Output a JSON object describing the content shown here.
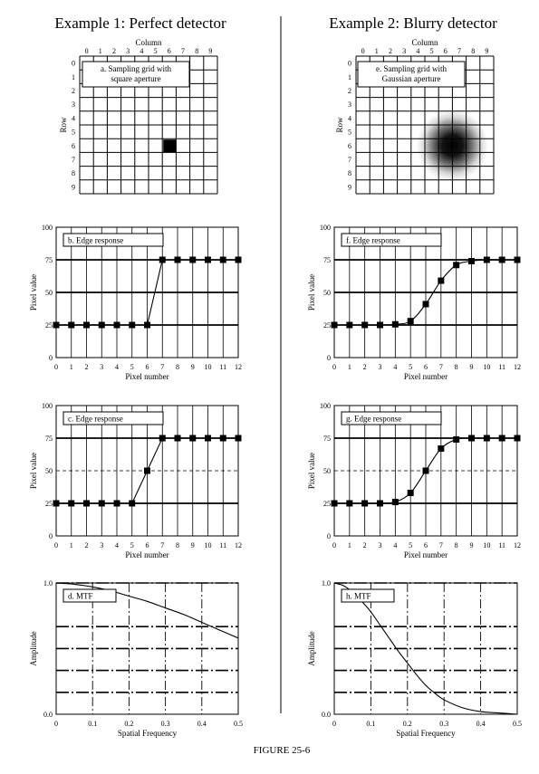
{
  "figure_caption": "FIGURE 25-6",
  "columns": [
    {
      "title": "Example 1: Perfect detector"
    },
    {
      "title": "Example 2: Blurry detector"
    }
  ],
  "grid_axes": {
    "col_label": "Column",
    "row_label": "Row",
    "indices": [
      "0",
      "1",
      "2",
      "3",
      "4",
      "5",
      "6",
      "7",
      "8",
      "9"
    ]
  },
  "grids": [
    {
      "label_line1": "a.  Sampling grid with",
      "label_line2": "square aperture",
      "aperture": "square",
      "aperture_col": 6,
      "aperture_row": 6
    },
    {
      "label_line1": "e.  Sampling grid with",
      "label_line2": "Gaussian aperture",
      "aperture": "gaussian",
      "aperture_col": 6.5,
      "aperture_row": 6
    }
  ],
  "chart_data": [
    {
      "id": "b",
      "type": "line",
      "label": "b.  Edge response",
      "xlabel": "Pixel number",
      "ylabel": "Pixel value",
      "xlim": [
        0,
        12
      ],
      "ylim": [
        0,
        100
      ],
      "xticks": [
        "0",
        "1",
        "2",
        "3",
        "4",
        "5",
        "6",
        "7",
        "8",
        "9",
        "10",
        "11",
        "12"
      ],
      "yticks": [
        "0",
        "25",
        "50",
        "75",
        "100"
      ],
      "bold_y": [
        25,
        50,
        75
      ],
      "x": [
        0,
        1,
        2,
        3,
        4,
        5,
        6,
        7,
        8,
        9,
        10,
        11,
        12
      ],
      "y": [
        25,
        25,
        25,
        25,
        25,
        25,
        25,
        75,
        75,
        75,
        75,
        75,
        75
      ]
    },
    {
      "id": "f",
      "type": "line",
      "label": "f.  Edge response",
      "xlabel": "Pixel number",
      "ylabel": "Pixel value",
      "xlim": [
        0,
        12
      ],
      "ylim": [
        0,
        100
      ],
      "xticks": [
        "0",
        "1",
        "2",
        "3",
        "4",
        "5",
        "6",
        "7",
        "8",
        "9",
        "10",
        "11",
        "12"
      ],
      "yticks": [
        "0",
        "25",
        "50",
        "75",
        "100"
      ],
      "bold_y": [
        25,
        50,
        75
      ],
      "x": [
        0,
        1,
        2,
        3,
        4,
        5,
        6,
        7,
        8,
        9,
        10,
        11,
        12
      ],
      "y": [
        25,
        25,
        25,
        25,
        25.5,
        28,
        41,
        59,
        71,
        74,
        75,
        75,
        75
      ]
    },
    {
      "id": "c",
      "type": "line",
      "label": "c.  Edge response",
      "xlabel": "Pixel number",
      "ylabel": "Pixel value",
      "xlim": [
        0,
        12
      ],
      "ylim": [
        0,
        100
      ],
      "xticks": [
        "0",
        "1",
        "2",
        "3",
        "4",
        "5",
        "6",
        "7",
        "8",
        "9",
        "10",
        "11",
        "12"
      ],
      "yticks": [
        "0",
        "25",
        "50",
        "75",
        "100"
      ],
      "bold_y": [
        25,
        75
      ],
      "x": [
        0,
        1,
        2,
        3,
        4,
        5,
        6,
        7,
        8,
        9,
        10,
        11,
        12
      ],
      "y": [
        25,
        25,
        25,
        25,
        25,
        25,
        50,
        75,
        75,
        75,
        75,
        75,
        75
      ]
    },
    {
      "id": "g",
      "type": "line",
      "label": "g.  Edge response",
      "xlabel": "Pixel number",
      "ylabel": "Pixel value",
      "xlim": [
        0,
        12
      ],
      "ylim": [
        0,
        100
      ],
      "xticks": [
        "0",
        "1",
        "2",
        "3",
        "4",
        "5",
        "6",
        "7",
        "8",
        "9",
        "10",
        "11",
        "12"
      ],
      "yticks": [
        "0",
        "25",
        "50",
        "75",
        "100"
      ],
      "bold_y": [
        25,
        75
      ],
      "x": [
        0,
        1,
        2,
        3,
        4,
        5,
        6,
        7,
        8,
        9,
        10,
        11,
        12
      ],
      "y": [
        25,
        25,
        25,
        25,
        26,
        33,
        50,
        67,
        74,
        75,
        75,
        75,
        75
      ]
    },
    {
      "id": "d",
      "type": "line",
      "label": "d.  MTF",
      "xlabel": "Spatial Frequency",
      "ylabel": "Amplitude",
      "xlim": [
        0,
        0.5
      ],
      "ylim": [
        0,
        1.0
      ],
      "xticks": [
        "0",
        "0.1",
        "0.2",
        "0.3",
        "0.4",
        "0.5"
      ],
      "yticks": [
        "0.0",
        "1.0"
      ],
      "x": [
        0,
        0.05,
        0.1,
        0.15,
        0.2,
        0.25,
        0.3,
        0.35,
        0.4,
        0.45,
        0.5
      ],
      "y": [
        1.0,
        0.99,
        0.97,
        0.94,
        0.9,
        0.86,
        0.81,
        0.76,
        0.7,
        0.64,
        0.58
      ]
    },
    {
      "id": "h",
      "type": "line",
      "label": "h.  MTF",
      "xlabel": "Spatial Frequency",
      "ylabel": "Amplitude",
      "xlim": [
        0,
        0.5
      ],
      "ylim": [
        0,
        1.0
      ],
      "xticks": [
        "0",
        "0.1",
        "0.2",
        "0.3",
        "0.4",
        "0.5"
      ],
      "yticks": [
        "0.0",
        "1.0"
      ],
      "x": [
        0,
        0.025,
        0.05,
        0.075,
        0.1,
        0.125,
        0.15,
        0.175,
        0.2,
        0.225,
        0.25,
        0.275,
        0.3,
        0.35,
        0.4,
        0.45,
        0.5
      ],
      "y": [
        1.0,
        0.98,
        0.93,
        0.86,
        0.78,
        0.68,
        0.58,
        0.48,
        0.39,
        0.3,
        0.22,
        0.16,
        0.11,
        0.05,
        0.02,
        0.01,
        0.0
      ]
    }
  ]
}
